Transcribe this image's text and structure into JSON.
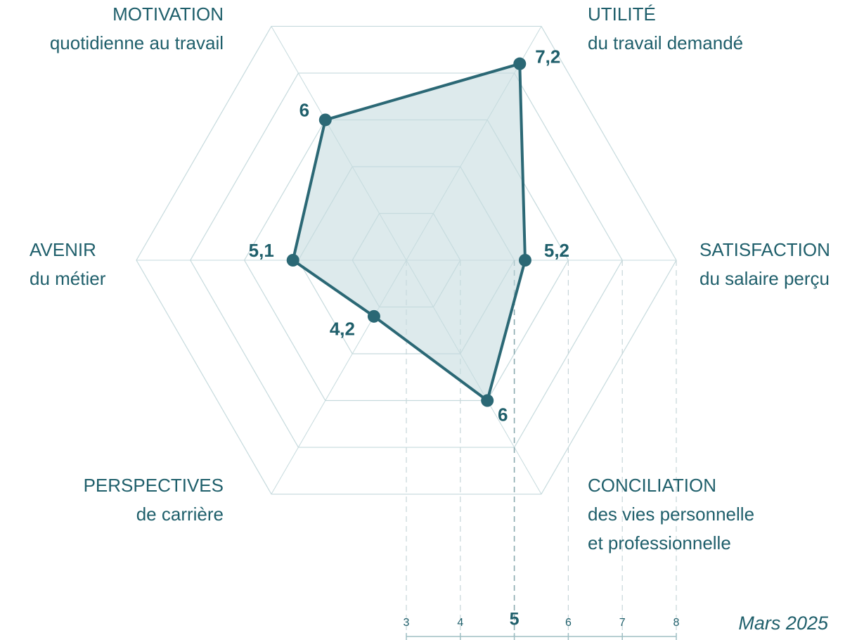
{
  "chart_data": {
    "type": "radar",
    "categories": [
      "MOTIVATION",
      "UTILITÉ",
      "SATISFACTION",
      "CONCILIATION",
      "PERSPECTIVES",
      "AVENIR"
    ],
    "category_subtitles": [
      [
        "quotidienne au travail"
      ],
      [
        "du travail demandé"
      ],
      [
        "du salaire perçu"
      ],
      [
        "des vies personnelle",
        "et professionnelle"
      ],
      [
        "de carrière"
      ],
      [
        "du métier"
      ]
    ],
    "values": [
      6,
      7.2,
      5.2,
      6,
      4.2,
      5.1
    ],
    "value_labels": [
      "6",
      "7,2",
      "5,2",
      "6",
      "4,2",
      "5,1"
    ],
    "color": "#2b6875",
    "rlim": [
      3,
      8
    ],
    "rticks": [
      3,
      4,
      5,
      6,
      7,
      8
    ],
    "highlight_tick": 5,
    "grid": true,
    "footnote": "Mars 2025"
  }
}
